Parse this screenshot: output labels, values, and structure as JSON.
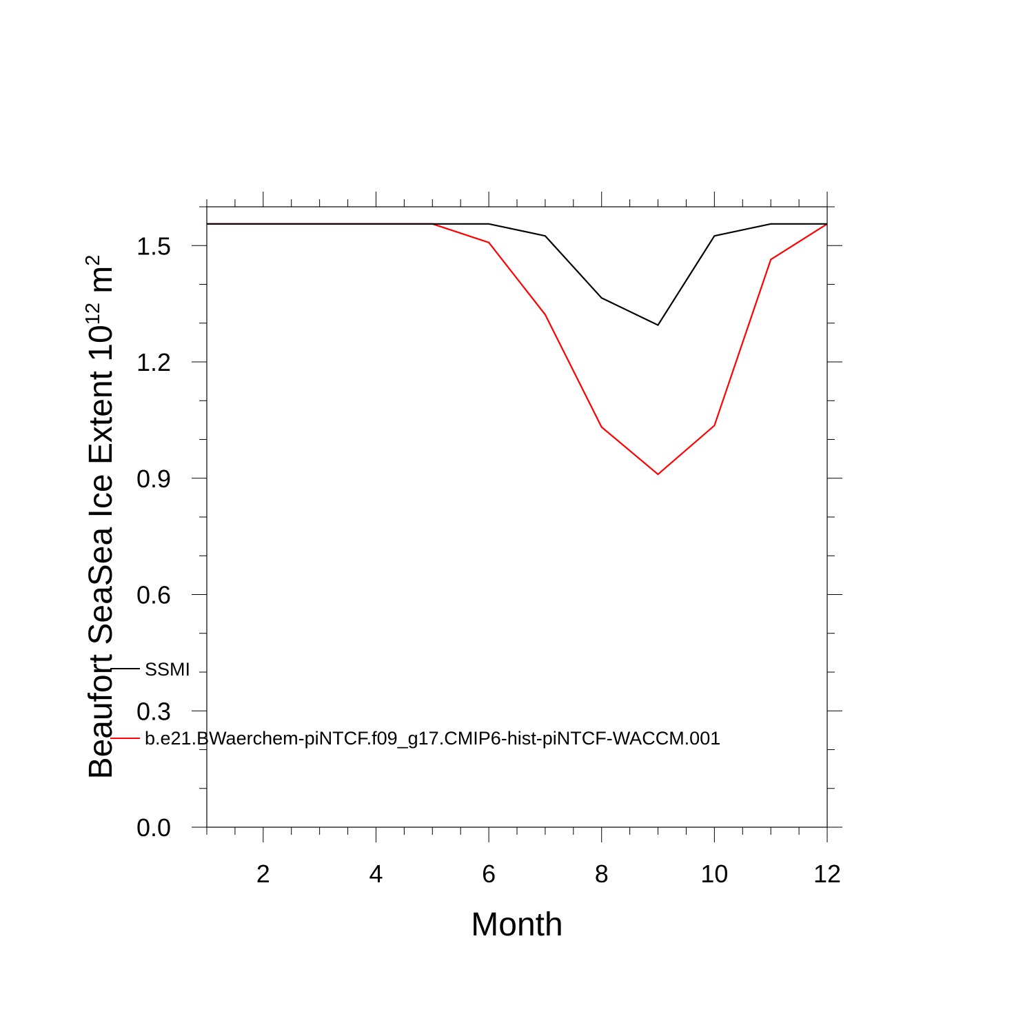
{
  "chart_data": {
    "type": "line",
    "xlabel": "Month",
    "ylabel": {
      "main": "Beaufort SeaSea Ice Extent 10",
      "exponent": "12",
      "unit": " m",
      "unit_exponent": "2"
    },
    "xlim": [
      1,
      12
    ],
    "ylim": [
      0,
      1.6
    ],
    "x_ticks": [
      2,
      4,
      6,
      8,
      10,
      12
    ],
    "x_tick_labels": [
      "2",
      "4",
      "6",
      "8",
      "10",
      "12"
    ],
    "y_ticks": [
      0,
      0.3,
      0.6,
      0.9,
      1.2,
      1.5
    ],
    "y_tick_labels": [
      "0.0",
      "0.3",
      "0.6",
      "0.9",
      "1.2",
      "1.5"
    ],
    "x": [
      1,
      2,
      3,
      4,
      5,
      6,
      7,
      8,
      9,
      10,
      11,
      12
    ],
    "series": [
      {
        "name": "SSMI",
        "color": "#000000",
        "values": [
          1.556,
          1.556,
          1.556,
          1.556,
          1.556,
          1.556,
          1.525,
          1.365,
          1.295,
          1.525,
          1.556,
          1.556
        ]
      },
      {
        "name": "b.e21.BWaerchem-piNTCF.f09_g17.CMIP6-hist-piNTCF-WACCM.001",
        "color": "#ff0000",
        "values": [
          1.556,
          1.556,
          1.556,
          1.556,
          1.556,
          1.508,
          1.322,
          1.032,
          0.91,
          1.036,
          1.464,
          1.556
        ]
      }
    ],
    "legend_placement": "lower-left"
  }
}
